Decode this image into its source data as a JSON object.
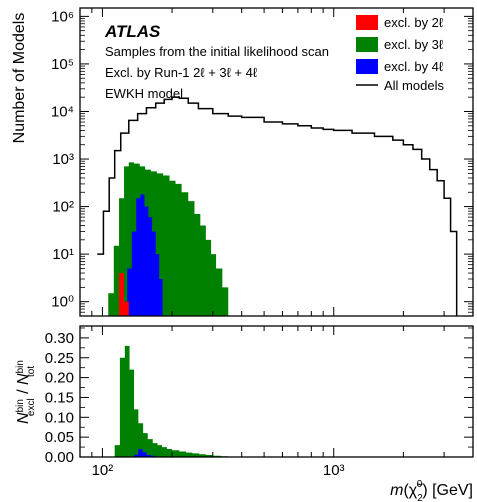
{
  "chart_data": [
    {
      "type": "histogram",
      "panel": "top",
      "xscale": "log",
      "yscale": "log",
      "xlim": [
        80,
        4000
      ],
      "ylim": [
        0.5,
        1500000
      ],
      "ylabel": "Number of Models",
      "xlabel": "",
      "y_ticks": [
        {
          "value": 1,
          "label": "10⁰"
        },
        {
          "value": 10,
          "label": "10¹"
        },
        {
          "value": 100,
          "label": "10²"
        },
        {
          "value": 1000,
          "label": "10³"
        },
        {
          "value": 10000,
          "label": "10⁴"
        },
        {
          "value": 100000,
          "label": "10⁵"
        },
        {
          "value": 1000000,
          "label": "10⁶"
        }
      ],
      "annotations": {
        "experiment": "ATLAS",
        "lines": [
          "Samples from the initial likelihood scan",
          "Excl. by Run-1 2ℓ + 3ℓ + 4ℓ",
          "EWKH model"
        ]
      },
      "legend_position": "top-right",
      "series": [
        {
          "name": "All models",
          "style": "step-line",
          "color": "#000000",
          "points": [
            [
              95,
              10
            ],
            [
              101,
              80
            ],
            [
              107,
              400
            ],
            [
              113,
              1500
            ],
            [
              120,
              3500
            ],
            [
              130,
              6500
            ],
            [
              142,
              9000
            ],
            [
              155,
              12000
            ],
            [
              170,
              15000
            ],
            [
              185,
              18000
            ],
            [
              200,
              20000
            ],
            [
              215,
              19000
            ],
            [
              235,
              15000
            ],
            [
              260,
              11500
            ],
            [
              300,
              9000
            ],
            [
              350,
              8000
            ],
            [
              400,
              7500
            ],
            [
              500,
              6000
            ],
            [
              600,
              5500
            ],
            [
              700,
              5000
            ],
            [
              800,
              4500
            ],
            [
              900,
              4200
            ],
            [
              1000,
              4000
            ],
            [
              1200,
              3500
            ],
            [
              1500,
              3000
            ],
            [
              1800,
              2500
            ],
            [
              2000,
              2000
            ],
            [
              2200,
              1600
            ],
            [
              2400,
              1000
            ],
            [
              2600,
              600
            ],
            [
              2800,
              350
            ],
            [
              3000,
              150
            ],
            [
              3200,
              30
            ],
            [
              3400,
              0.5
            ]
          ]
        },
        {
          "name": "excl. by 3ℓ",
          "style": "filled",
          "color": "#008000",
          "points": [
            [
              106,
              1.5
            ],
            [
              112,
              15
            ],
            [
              118,
              150
            ],
            [
              124,
              700
            ],
            [
              130,
              850
            ],
            [
              137,
              800
            ],
            [
              145,
              700
            ],
            [
              153,
              600
            ],
            [
              162,
              550
            ],
            [
              172,
              500
            ],
            [
              183,
              450
            ],
            [
              195,
              350
            ],
            [
              207,
              300
            ],
            [
              220,
              200
            ],
            [
              235,
              130
            ],
            [
              250,
              70
            ],
            [
              265,
              40
            ],
            [
              280,
              20
            ],
            [
              295,
              10
            ],
            [
              310,
              5
            ],
            [
              330,
              2
            ],
            [
              350,
              0.5
            ]
          ]
        },
        {
          "name": "excl. by 4ℓ",
          "style": "filled",
          "color": "#0000ff",
          "points": [
            [
              122,
              1
            ],
            [
              128,
              5
            ],
            [
              134,
              30
            ],
            [
              140,
              150
            ],
            [
              146,
              180
            ],
            [
              152,
              100
            ],
            [
              158,
              60
            ],
            [
              164,
              30
            ],
            [
              170,
              10
            ],
            [
              176,
              3
            ],
            [
              182,
              0.5
            ]
          ]
        },
        {
          "name": "excl. by 2ℓ",
          "style": "filled",
          "color": "#ff0000",
          "points": [
            [
              118,
              4
            ],
            [
              124,
              1
            ],
            [
              130,
              0.5
            ]
          ]
        }
      ]
    },
    {
      "type": "histogram",
      "panel": "bottom",
      "xscale": "log",
      "yscale": "linear",
      "xlim": [
        80,
        4000
      ],
      "ylim": [
        0,
        0.33
      ],
      "ylabel": "N^bin_excl / N^bin_tot",
      "xlabel": "m(χ̃⁰₂) [GeV]",
      "y_ticks": [
        {
          "value": 0,
          "label": "0.00"
        },
        {
          "value": 0.05,
          "label": "0.05"
        },
        {
          "value": 0.1,
          "label": "0.10"
        },
        {
          "value": 0.15,
          "label": "0.15"
        },
        {
          "value": 0.2,
          "label": "0.20"
        },
        {
          "value": 0.25,
          "label": "0.25"
        },
        {
          "value": 0.3,
          "label": "0.30"
        }
      ],
      "x_ticks": [
        {
          "value": 100,
          "label": "10²"
        },
        {
          "value": 1000,
          "label": "10³"
        }
      ],
      "series": [
        {
          "name": "excl. by 3ℓ",
          "color": "#008000",
          "points": [
            [
              113,
              0.03
            ],
            [
              119,
              0.25
            ],
            [
              125,
              0.28
            ],
            [
              131,
              0.22
            ],
            [
              137,
              0.12
            ],
            [
              143,
              0.085
            ],
            [
              150,
              0.06
            ],
            [
              157,
              0.045
            ],
            [
              165,
              0.035
            ],
            [
              173,
              0.03
            ],
            [
              181,
              0.025
            ],
            [
              190,
              0.02
            ],
            [
              200,
              0.017
            ],
            [
              215,
              0.014
            ],
            [
              230,
              0.011
            ],
            [
              245,
              0.009
            ],
            [
              262,
              0.007
            ],
            [
              280,
              0.005
            ],
            [
              300,
              0.003
            ],
            [
              325,
              0.002
            ],
            [
              350,
              0.0
            ]
          ]
        },
        {
          "name": "excl. by 4ℓ",
          "color": "#0000ff",
          "points": [
            [
              137,
              0.006
            ],
            [
              143,
              0.02
            ],
            [
              149,
              0.012
            ],
            [
              155,
              0.005
            ],
            [
              162,
              0.003
            ],
            [
              170,
              0.0
            ]
          ]
        }
      ]
    }
  ],
  "legend": [
    {
      "label": "excl. by 2ℓ",
      "kind": "patch",
      "color": "#ff0000"
    },
    {
      "label": "excl. by 3ℓ",
      "kind": "patch",
      "color": "#008000"
    },
    {
      "label": "excl. by 4ℓ",
      "kind": "patch",
      "color": "#0000ff"
    },
    {
      "label": "All models",
      "kind": "line",
      "color": "#000000"
    }
  ]
}
